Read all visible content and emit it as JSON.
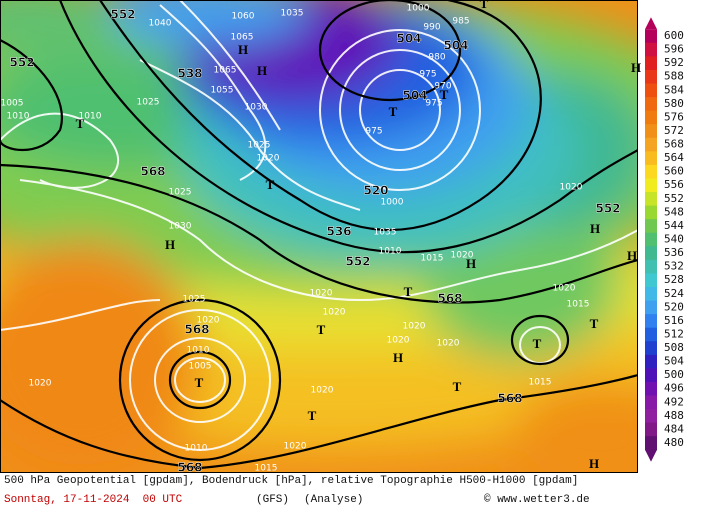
{
  "map": {
    "labels": [
      "552",
      "1040",
      "1060",
      "1035",
      "1065",
      "H",
      "538",
      "1065",
      "1055",
      "H",
      "1030",
      "1025",
      "1020",
      "T",
      "552",
      "1005",
      "1010",
      "T",
      "1010",
      "1025",
      "568",
      "1025",
      "1030",
      "H",
      "1025",
      "1020",
      "568",
      "1010",
      "1005",
      "T",
      "1010",
      "568",
      "1020",
      "1015",
      "1020",
      "T",
      "1020",
      "T",
      "1020",
      "1020",
      "536",
      "552",
      "1010",
      "1015",
      "1020",
      "H",
      "568",
      "T",
      "1020",
      "1020",
      "H",
      "1020",
      "T",
      "568",
      "1015",
      "T",
      "1020",
      "1015",
      "T",
      "H",
      "552",
      "H",
      "H",
      "1020",
      "504",
      "504",
      "1000",
      "990",
      "985",
      "980",
      "975",
      "970",
      "504",
      "T",
      "975",
      "T",
      "975",
      "520",
      "1000",
      "1035",
      "T",
      "H"
    ]
  },
  "colorbar": {
    "ticks": [
      600,
      596,
      592,
      588,
      584,
      580,
      576,
      572,
      568,
      564,
      560,
      556,
      552,
      548,
      544,
      540,
      536,
      532,
      528,
      524,
      520,
      516,
      512,
      508,
      504,
      500,
      496,
      492,
      488,
      484,
      480
    ],
    "colors": [
      "#b4005a",
      "#d01040",
      "#e02020",
      "#e83818",
      "#ee5010",
      "#f06810",
      "#f07c10",
      "#f09018",
      "#f4a420",
      "#f8bc20",
      "#fcd820",
      "#f0ec20",
      "#c8e428",
      "#98d830",
      "#70c850",
      "#50c070",
      "#40b890",
      "#40c0b0",
      "#40c8d0",
      "#40b8e8",
      "#40a0f0",
      "#3080f0",
      "#2060e0",
      "#2040d0",
      "#3020c0",
      "#5010b8",
      "#7010b0",
      "#8818a8",
      "#9020a0",
      "#801888",
      "#601070"
    ]
  },
  "footer": {
    "description": "500 hPa Geopotential [gpdam], Bodendruck [hPa], relative Topographie H500-H1000 [gpdam]",
    "date": "Sonntag, 17-11-2024  00 UTC",
    "model": "(GFS)",
    "run": "(Analyse)",
    "credit": "© www.wetter3.de"
  }
}
